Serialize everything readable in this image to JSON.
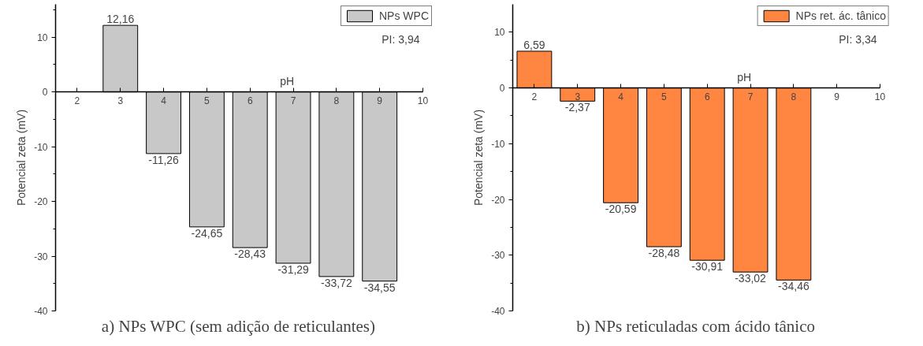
{
  "chart_data": [
    {
      "type": "bar",
      "title": "a)    NPs WPC (sem adição de reticulantes)",
      "ylabel": "Potencial zeta (mV)",
      "xlabel": "pH",
      "annotations": [
        "PI: 3,94"
      ],
      "x": [
        3,
        4,
        5,
        6,
        7,
        8,
        9
      ],
      "legend": "top right",
      "grid": false,
      "series": [
        {
          "name": "NPs WPC",
          "color": "#c8c8c8",
          "values": [
            12.16,
            -11.26,
            -24.65,
            -28.43,
            -31.29,
            -33.72,
            -34.55
          ],
          "value_labels": [
            "12,16",
            "-11,26",
            "-24,65",
            "-28,43",
            "-31,29",
            "-33,72",
            "-34,55"
          ]
        }
      ],
      "xlim": [
        1.5,
        10
      ],
      "xticks": [
        2,
        3,
        4,
        5,
        6,
        7,
        8,
        9,
        10
      ],
      "ylim": [
        -40,
        16
      ],
      "yticks": [
        -40,
        {
          "value": -35,
          "label": null
        },
        -30,
        {
          "value": -25,
          "label": null
        },
        -20,
        {
          "value": -15,
          "label": null
        },
        -10,
        {
          "value": -5,
          "label": null
        },
        0,
        {
          "value": 5,
          "label": null
        },
        10,
        {
          "value": 15,
          "label": null
        }
      ]
    },
    {
      "type": "bar",
      "title": "b)    NPs reticuladas com ácido tânico",
      "ylabel": "Potencial zeta (mV)",
      "xlabel": "pH",
      "annotations": [
        "PI: 3,34"
      ],
      "x": [
        2,
        3,
        4,
        5,
        6,
        7,
        8
      ],
      "legend": "top right",
      "grid": false,
      "series": [
        {
          "name": "NPs ret. ác. tânico",
          "color": "#fe8640",
          "values": [
            6.59,
            -2.37,
            -20.59,
            -28.48,
            -30.91,
            -33.02,
            -34.46
          ],
          "value_labels": [
            "6,59",
            "-2,37",
            "-20,59",
            "-28,48",
            "-30,91",
            "-33,02",
            "-34,46"
          ]
        }
      ],
      "xlim": [
        1.5,
        10
      ],
      "xticks": [
        2,
        3,
        4,
        5,
        6,
        7,
        8,
        9,
        10
      ],
      "ylim": [
        -40,
        15
      ],
      "yticks": [
        -40,
        {
          "value": -35,
          "label": null
        },
        -30,
        {
          "value": -25,
          "label": null
        },
        -20,
        {
          "value": -15,
          "label": null
        },
        -10,
        {
          "value": -5,
          "label": null
        },
        0,
        {
          "value": 5,
          "label": null
        },
        10
      ]
    }
  ]
}
